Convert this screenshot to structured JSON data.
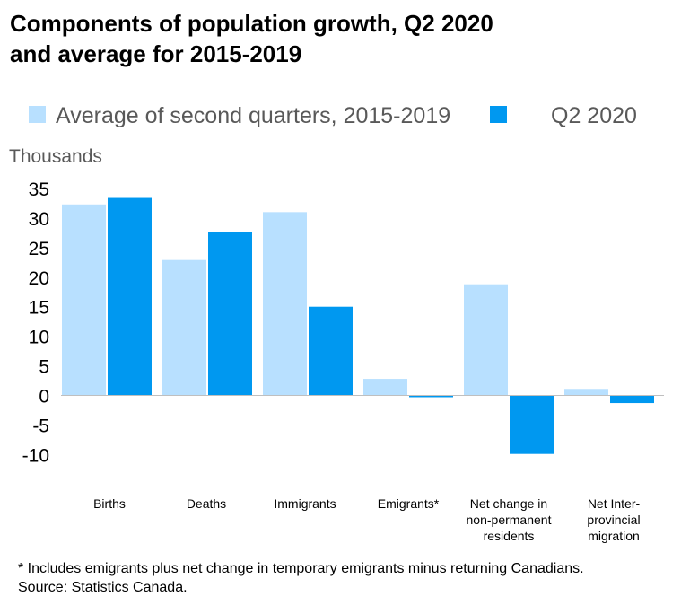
{
  "chart_data": {
    "type": "bar",
    "title_lines": [
      "Components of population growth, Q2 2020",
      "and average for 2015-2019"
    ],
    "ylabel": "Thousands",
    "ylim": [
      -10,
      35
    ],
    "yticks": [
      35,
      30,
      25,
      20,
      15,
      10,
      5,
      0,
      -5,
      -10
    ],
    "categories": [
      {
        "name": "births",
        "lines": [
          "Births"
        ]
      },
      {
        "name": "deaths",
        "lines": [
          "Deaths"
        ]
      },
      {
        "name": "immigrants",
        "lines": [
          "Immigrants"
        ]
      },
      {
        "name": "emigrants",
        "lines": [
          "Emigrants*"
        ]
      },
      {
        "name": "net-npr",
        "lines": [
          "Net change in",
          "non-permanent",
          "residents"
        ]
      },
      {
        "name": "net-interprovincial",
        "lines": [
          "Net Inter-",
          "provincial",
          "migration"
        ]
      }
    ],
    "series": [
      {
        "name": "Average of second quarters, 2015-2019",
        "color": "#b8e0ff",
        "values": [
          32.3,
          22.9,
          31.0,
          2.8,
          18.8,
          1.1
        ]
      },
      {
        "name": "Q2 2020",
        "color": "#0098f0",
        "values": [
          33.4,
          27.6,
          15.0,
          -0.3,
          -9.9,
          -1.3
        ]
      }
    ],
    "legend_position": "top",
    "grid": false
  },
  "footnote": {
    "line1": "*  Includes emigrants plus net change in temporary emigrants minus returning Canadians.",
    "line2": "Source: Statistics Canada."
  }
}
